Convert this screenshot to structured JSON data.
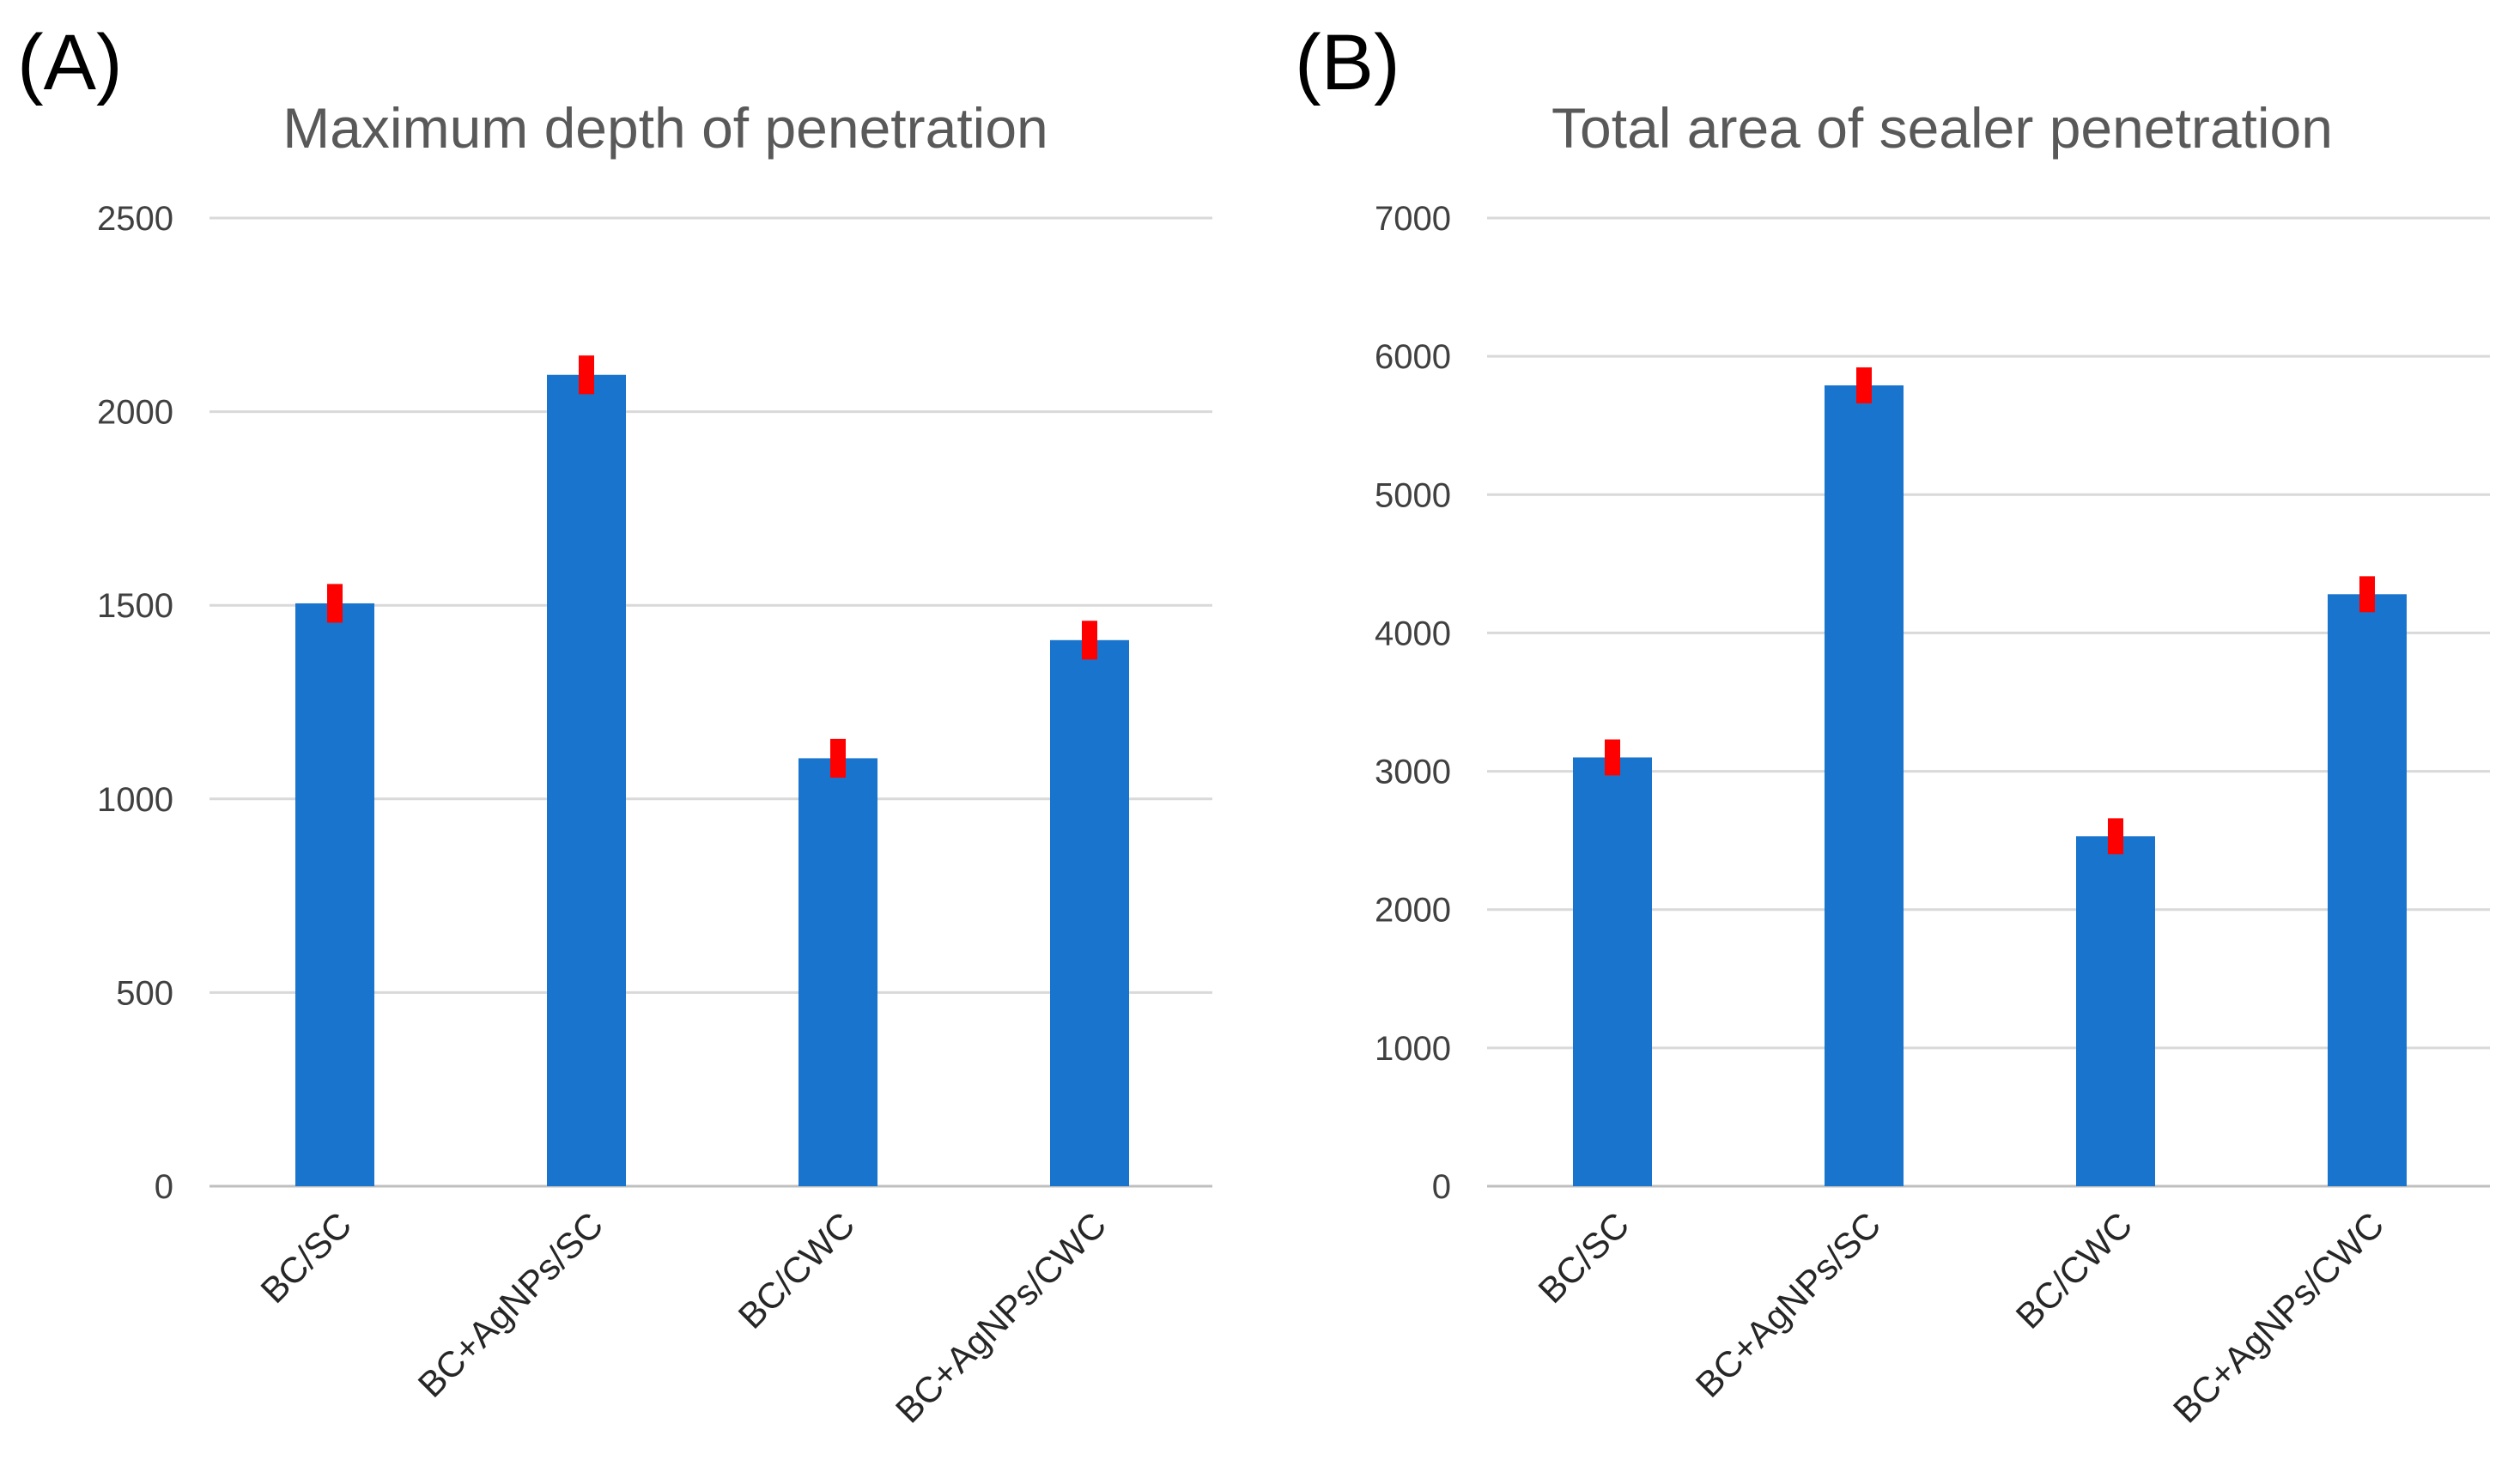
{
  "colors": {
    "bar": "#1874CD",
    "error_bar": "#FF0000",
    "gridline": "#D9D9D9",
    "title": "#595959"
  },
  "chart_data": [
    {
      "panel_label": "(A)",
      "type": "bar",
      "title": "Maximum depth of penetration",
      "xlabel": "",
      "ylabel": "",
      "categories": [
        "BC/SC",
        "BC+AgNPs/SC",
        "BC/CWC",
        "BC+AgNPs/CWC"
      ],
      "values": [
        1505,
        2095,
        1105,
        1410
      ],
      "errors": [
        50,
        50,
        50,
        50
      ],
      "ylim": [
        0,
        2500
      ],
      "yticks": [
        0,
        500,
        1000,
        1500,
        2000,
        2500
      ],
      "grid": true,
      "legend": "none"
    },
    {
      "panel_label": "(B)",
      "type": "bar",
      "title": "Total area of sealer penetration",
      "xlabel": "",
      "ylabel": "",
      "categories": [
        "BC/SC",
        "BC+AgNPs/SC",
        "BC/CWC",
        "BC+AgNPs/CWC"
      ],
      "values": [
        3100,
        5790,
        2530,
        4280
      ],
      "errors": [
        130,
        130,
        130,
        130
      ],
      "ylim": [
        0,
        7000
      ],
      "yticks": [
        0,
        1000,
        2000,
        3000,
        4000,
        5000,
        6000,
        7000
      ],
      "grid": true,
      "legend": "none"
    }
  ]
}
